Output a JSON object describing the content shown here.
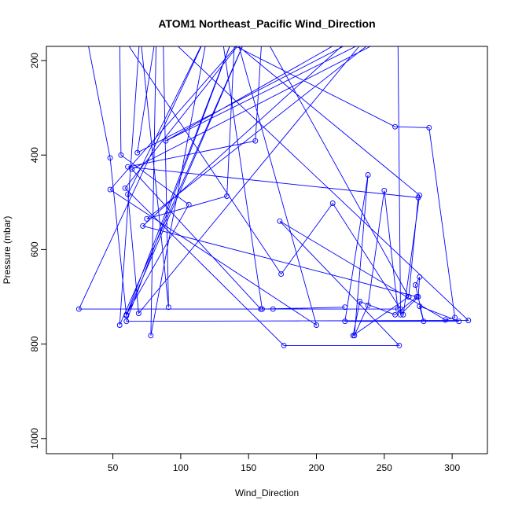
{
  "chart_data": {
    "type": "line",
    "markers": "open-circle",
    "title": "ATOM1 Northeast_Pacific Wind_Direction",
    "xlabel": "Wind_Direction",
    "ylabel": "Pressure (mbar)",
    "xlim": [
      1,
      326
    ],
    "ylim": [
      1032,
      170
    ],
    "y_reversed": true,
    "grid": false,
    "xticks": [
      50,
      100,
      150,
      200,
      250,
      300
    ],
    "yticks": [
      200,
      400,
      600,
      800,
      1000
    ],
    "line_color": "#0000ff",
    "series": [
      {
        "points": [
          [
            30,
            140
          ],
          [
            48,
            406
          ],
          [
            60,
            740
          ],
          [
            150,
            140
          ],
          [
            48,
            473
          ],
          [
            200,
            760
          ],
          [
            140,
            140
          ],
          [
            60,
            752
          ],
          [
            312,
            750
          ],
          [
            87,
            140
          ],
          [
            91,
            722
          ],
          [
            70,
            140
          ],
          [
            55,
            760
          ],
          [
            150,
            140
          ],
          [
            59,
            470
          ],
          [
            176,
            803
          ],
          [
            261,
            803
          ],
          [
            173,
            540
          ],
          [
            295,
            749
          ],
          [
            302,
            744
          ],
          [
            283,
            342
          ],
          [
            258,
            340
          ],
          [
            120,
            140
          ],
          [
            61,
            483
          ],
          [
            69,
            735
          ],
          [
            240,
            140
          ],
          [
            68,
            395
          ],
          [
            82,
            140
          ],
          [
            78,
            782
          ],
          [
            120,
            140
          ],
          [
            25,
            726
          ],
          [
            260,
            726
          ],
          [
            250,
            475
          ],
          [
            238,
            718
          ],
          [
            228,
            782
          ],
          [
            238,
            442
          ],
          [
            221,
            752
          ],
          [
            305,
            752
          ],
          [
            276,
            720
          ],
          [
            279,
            752
          ],
          [
            273,
            675
          ],
          [
            276,
            658
          ],
          [
            275,
            700
          ],
          [
            262,
            738
          ],
          [
            260,
            140
          ],
          [
            64,
            430
          ],
          [
            159,
            726
          ],
          [
            168,
            726
          ],
          [
            221,
            722
          ],
          [
            160,
            726
          ],
          [
            130,
            140
          ],
          [
            276,
            485
          ],
          [
            264,
            738
          ],
          [
            262,
            726
          ],
          [
            212,
            502
          ],
          [
            174,
            652
          ],
          [
            55,
            140
          ],
          [
            56,
            400
          ],
          [
            106,
            505
          ],
          [
            60,
            738
          ],
          [
            140,
            140
          ],
          [
            134,
            487
          ],
          [
            75,
            535
          ],
          [
            250,
            140
          ],
          [
            89,
            370
          ],
          [
            230,
            140
          ],
          [
            72,
            550
          ],
          [
            274,
            700
          ],
          [
            258,
            738
          ],
          [
            232,
            710
          ],
          [
            227,
            782
          ],
          [
            268,
            700
          ],
          [
            275,
            490
          ],
          [
            61,
            425
          ],
          [
            155,
            370
          ],
          [
            160,
            140
          ],
          [
            268,
            700
          ]
        ]
      }
    ]
  }
}
